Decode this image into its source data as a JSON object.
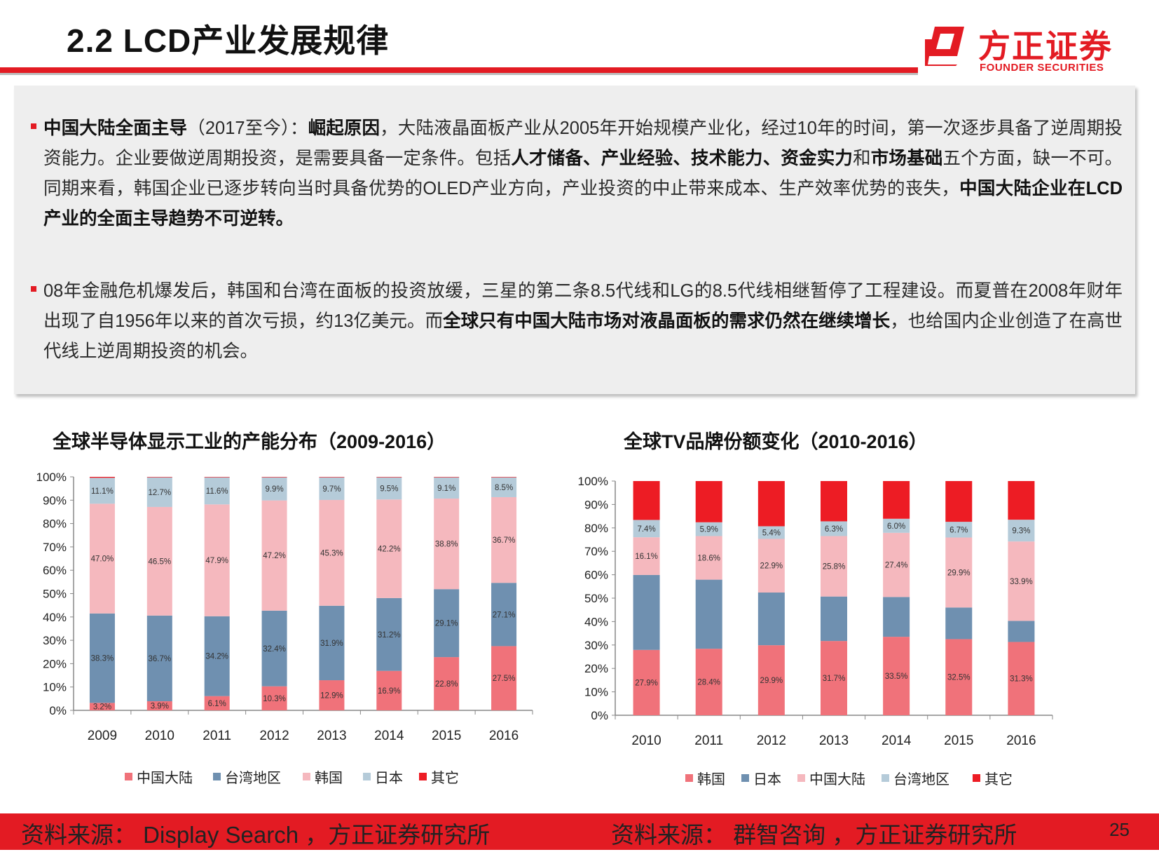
{
  "header": {
    "title": "2.2 LCD产业发展规律",
    "logo_cn": "方正证券",
    "logo_en": "FOUNDER SECURITIES"
  },
  "content": {
    "p1": {
      "s1b": "中国大陆全面主导",
      "s2": "（2017至今）：",
      "s3b": "崛起原因",
      "s4": "，大陆液晶面板产业从2005年开始规模产业化，经过10年的时间，第一次逐步具备了逆周期投资能力。企业要做逆周期投资，是需要具备一定条件。包括",
      "s5b": "人才储备、产业经验、技术能力、资金实力",
      "s6": "和",
      "s7b": "市场基础",
      "s8": "五个方面，缺一不可。同期来看，韩国企业已逐步转向当时具备优势的OLED产业方向，产业投资的中止带来成本、生产效率优势的丧失，",
      "s9b": "中国大陆企业在LCD产业的全面主导趋势不可逆转。"
    },
    "p2": {
      "s1": "08年金融危机爆发后，韩国和台湾在面板的投资放缓，三星的第二条8.5代线和LG的8.5代线相继暂停了工程建设。而夏普在2008年财年出现了自1956年以来的首次亏损，约13亿美元。而",
      "s2b": "全球只有中国大陆市场对液晶面板的需求仍然在继续增长",
      "s3": "，也给国内企业创造了在高世代线上逆周期投资的机会。"
    }
  },
  "footer": {
    "source1": "资料来源： Display Search ，方正证券研究所",
    "source2": "资料来源： 群智咨询 ，方正证券研究所",
    "page": "25"
  },
  "chart_data": [
    {
      "type": "bar",
      "stacked": true,
      "title": "全球半导体显示工业的产能分布（2009-2016）",
      "categories": [
        "2009",
        "2010",
        "2011",
        "2012",
        "2013",
        "2014",
        "2015",
        "2016"
      ],
      "ylim": [
        0,
        100
      ],
      "yticks": [
        "0%",
        "10%",
        "20%",
        "30%",
        "40%",
        "50%",
        "60%",
        "70%",
        "80%",
        "90%",
        "100%"
      ],
      "legend_position": "bottom",
      "series": [
        {
          "name": "中国大陆",
          "color": "#f0727a",
          "values": [
            3.2,
            3.9,
            6.1,
            10.3,
            12.9,
            16.9,
            22.8,
            27.5
          ],
          "labels": [
            "3.2%",
            "3.9%",
            "6.1%",
            "10.3%",
            "12.9%",
            "16.9%",
            "22.8%",
            "27.5%"
          ]
        },
        {
          "name": "台湾地区",
          "color": "#6f90b0",
          "values": [
            38.3,
            36.7,
            34.2,
            32.4,
            31.9,
            31.2,
            29.1,
            27.1
          ],
          "labels": [
            "38.3%",
            "36.7%",
            "34.2%",
            "32.4%",
            "31.9%",
            "31.2%",
            "29.1%",
            "27.1%"
          ]
        },
        {
          "name": "韩国",
          "color": "#f5b8be",
          "values": [
            47.0,
            46.5,
            47.9,
            47.2,
            45.3,
            42.2,
            38.8,
            36.7
          ],
          "labels": [
            "47.0%",
            "46.5%",
            "47.9%",
            "47.2%",
            "45.3%",
            "42.2%",
            "38.8%",
            "36.7%"
          ]
        },
        {
          "name": "日本",
          "color": "#b5cbd9",
          "values": [
            11.1,
            12.7,
            11.6,
            9.9,
            9.7,
            9.5,
            9.1,
            8.5
          ],
          "labels": [
            "11.1%",
            "12.7%",
            "11.6%",
            "9.9%",
            "9.7%",
            "9.5%",
            "9.1%",
            "8.5%"
          ]
        },
        {
          "name": "其它",
          "color": "#ed1c24",
          "values": [
            0.4,
            0.2,
            0.2,
            0.2,
            0.2,
            0.2,
            0.2,
            0.2
          ],
          "labels": [
            "",
            "",
            "",
            "",
            "",
            "",
            "",
            ""
          ]
        }
      ]
    },
    {
      "type": "bar",
      "stacked": true,
      "title": "全球TV品牌份额变化（2010-2016）",
      "categories": [
        "2010",
        "2011",
        "2012",
        "2013",
        "2014",
        "2015",
        "2016"
      ],
      "ylim": [
        0,
        100
      ],
      "yticks": [
        "0%",
        "10%",
        "20%",
        "30%",
        "40%",
        "50%",
        "60%",
        "70%",
        "80%",
        "90%",
        "100%"
      ],
      "legend_position": "bottom",
      "series": [
        {
          "name": "韩国",
          "color": "#f0727a",
          "values": [
            27.9,
            28.4,
            29.9,
            31.7,
            33.5,
            32.5,
            31.3
          ],
          "labels": [
            "27.9%",
            "28.4%",
            "29.9%",
            "31.7%",
            "33.5%",
            "32.5%",
            "31.3%"
          ]
        },
        {
          "name": "日本",
          "color": "#6f90b0",
          "values": [
            32,
            29.5,
            22.5,
            19,
            17,
            13.5,
            9
          ],
          "labels": [
            "",
            "",
            "",
            "",
            "",
            "",
            ""
          ]
        },
        {
          "name": "中国大陆",
          "color": "#f5b8be",
          "values": [
            16.1,
            18.6,
            22.9,
            25.8,
            27.4,
            29.9,
            33.9
          ],
          "labels": [
            "16.1%",
            "18.6%",
            "22.9%",
            "25.8%",
            "27.4%",
            "29.9%",
            "33.9%"
          ]
        },
        {
          "name": "台湾地区",
          "color": "#b5cbd9",
          "values": [
            7.4,
            5.9,
            5.4,
            6.3,
            6.0,
            6.7,
            9.3
          ],
          "labels": [
            "7.4%",
            "5.9%",
            "5.4%",
            "6.3%",
            "6.0%",
            "6.7%",
            "9.3%"
          ]
        },
        {
          "name": "其它",
          "color": "#ed1c24",
          "values": [
            16.6,
            17.6,
            19.3,
            17.2,
            16.1,
            17.4,
            16.5
          ],
          "labels": [
            "",
            "",
            "",
            "",
            "",
            "",
            ""
          ]
        }
      ]
    }
  ]
}
